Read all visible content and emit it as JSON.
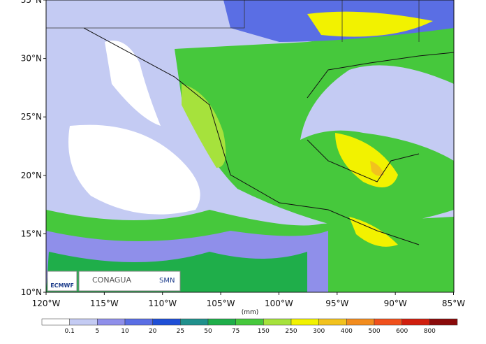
{
  "map": {
    "lat_labels": [
      "10°N",
      "15°N",
      "20°N",
      "25°N",
      "30°N",
      "35°N"
    ],
    "lon_labels": [
      "120°W",
      "115°W",
      "110°W",
      "105°W",
      "100°W",
      "95°W",
      "90°W",
      "85°W"
    ],
    "logos": {
      "ecmwf": "ECMWF",
      "conagua": "CONAGUA",
      "smn": "SMN"
    }
  },
  "colorbar": {
    "unit": "(mm)",
    "labels": [
      "0.1",
      "5",
      "10",
      "20",
      "25",
      "50",
      "75",
      "150",
      "250",
      "300",
      "400",
      "500",
      "600",
      "800"
    ],
    "colors": [
      "#ffffff",
      "#c4cbf3",
      "#8f8fea",
      "#5a6ee4",
      "#1f4fd6",
      "#20908c",
      "#1fae4a",
      "#46c83c",
      "#a6e23c",
      "#f2f200",
      "#f2c21e",
      "#f28c1e",
      "#f0501c",
      "#d01e0e",
      "#8a0a0a"
    ]
  }
}
